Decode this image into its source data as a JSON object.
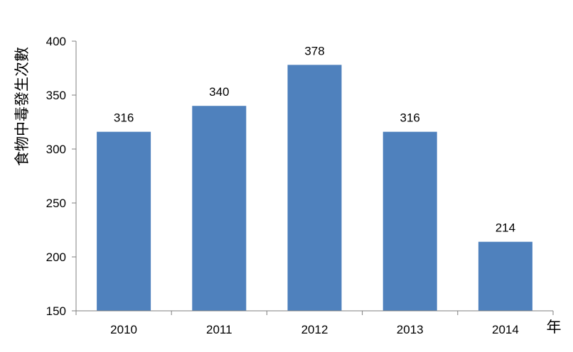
{
  "chart_data": {
    "type": "bar",
    "categories": [
      "2010",
      "2011",
      "2012",
      "2013",
      "2014"
    ],
    "values": [
      316,
      340,
      378,
      316,
      214
    ],
    "data_labels": [
      "316",
      "340",
      "378",
      "316",
      "214"
    ],
    "title": "",
    "xlabel": "年",
    "ylabel": "食物中毒發生次數",
    "ylim": [
      150,
      400
    ],
    "yticks": [
      "150",
      "200",
      "250",
      "300",
      "350",
      "400"
    ],
    "grid": false,
    "legend": "none",
    "bar_color": "#4F81BD",
    "axis_color": "#7F7F7F"
  }
}
